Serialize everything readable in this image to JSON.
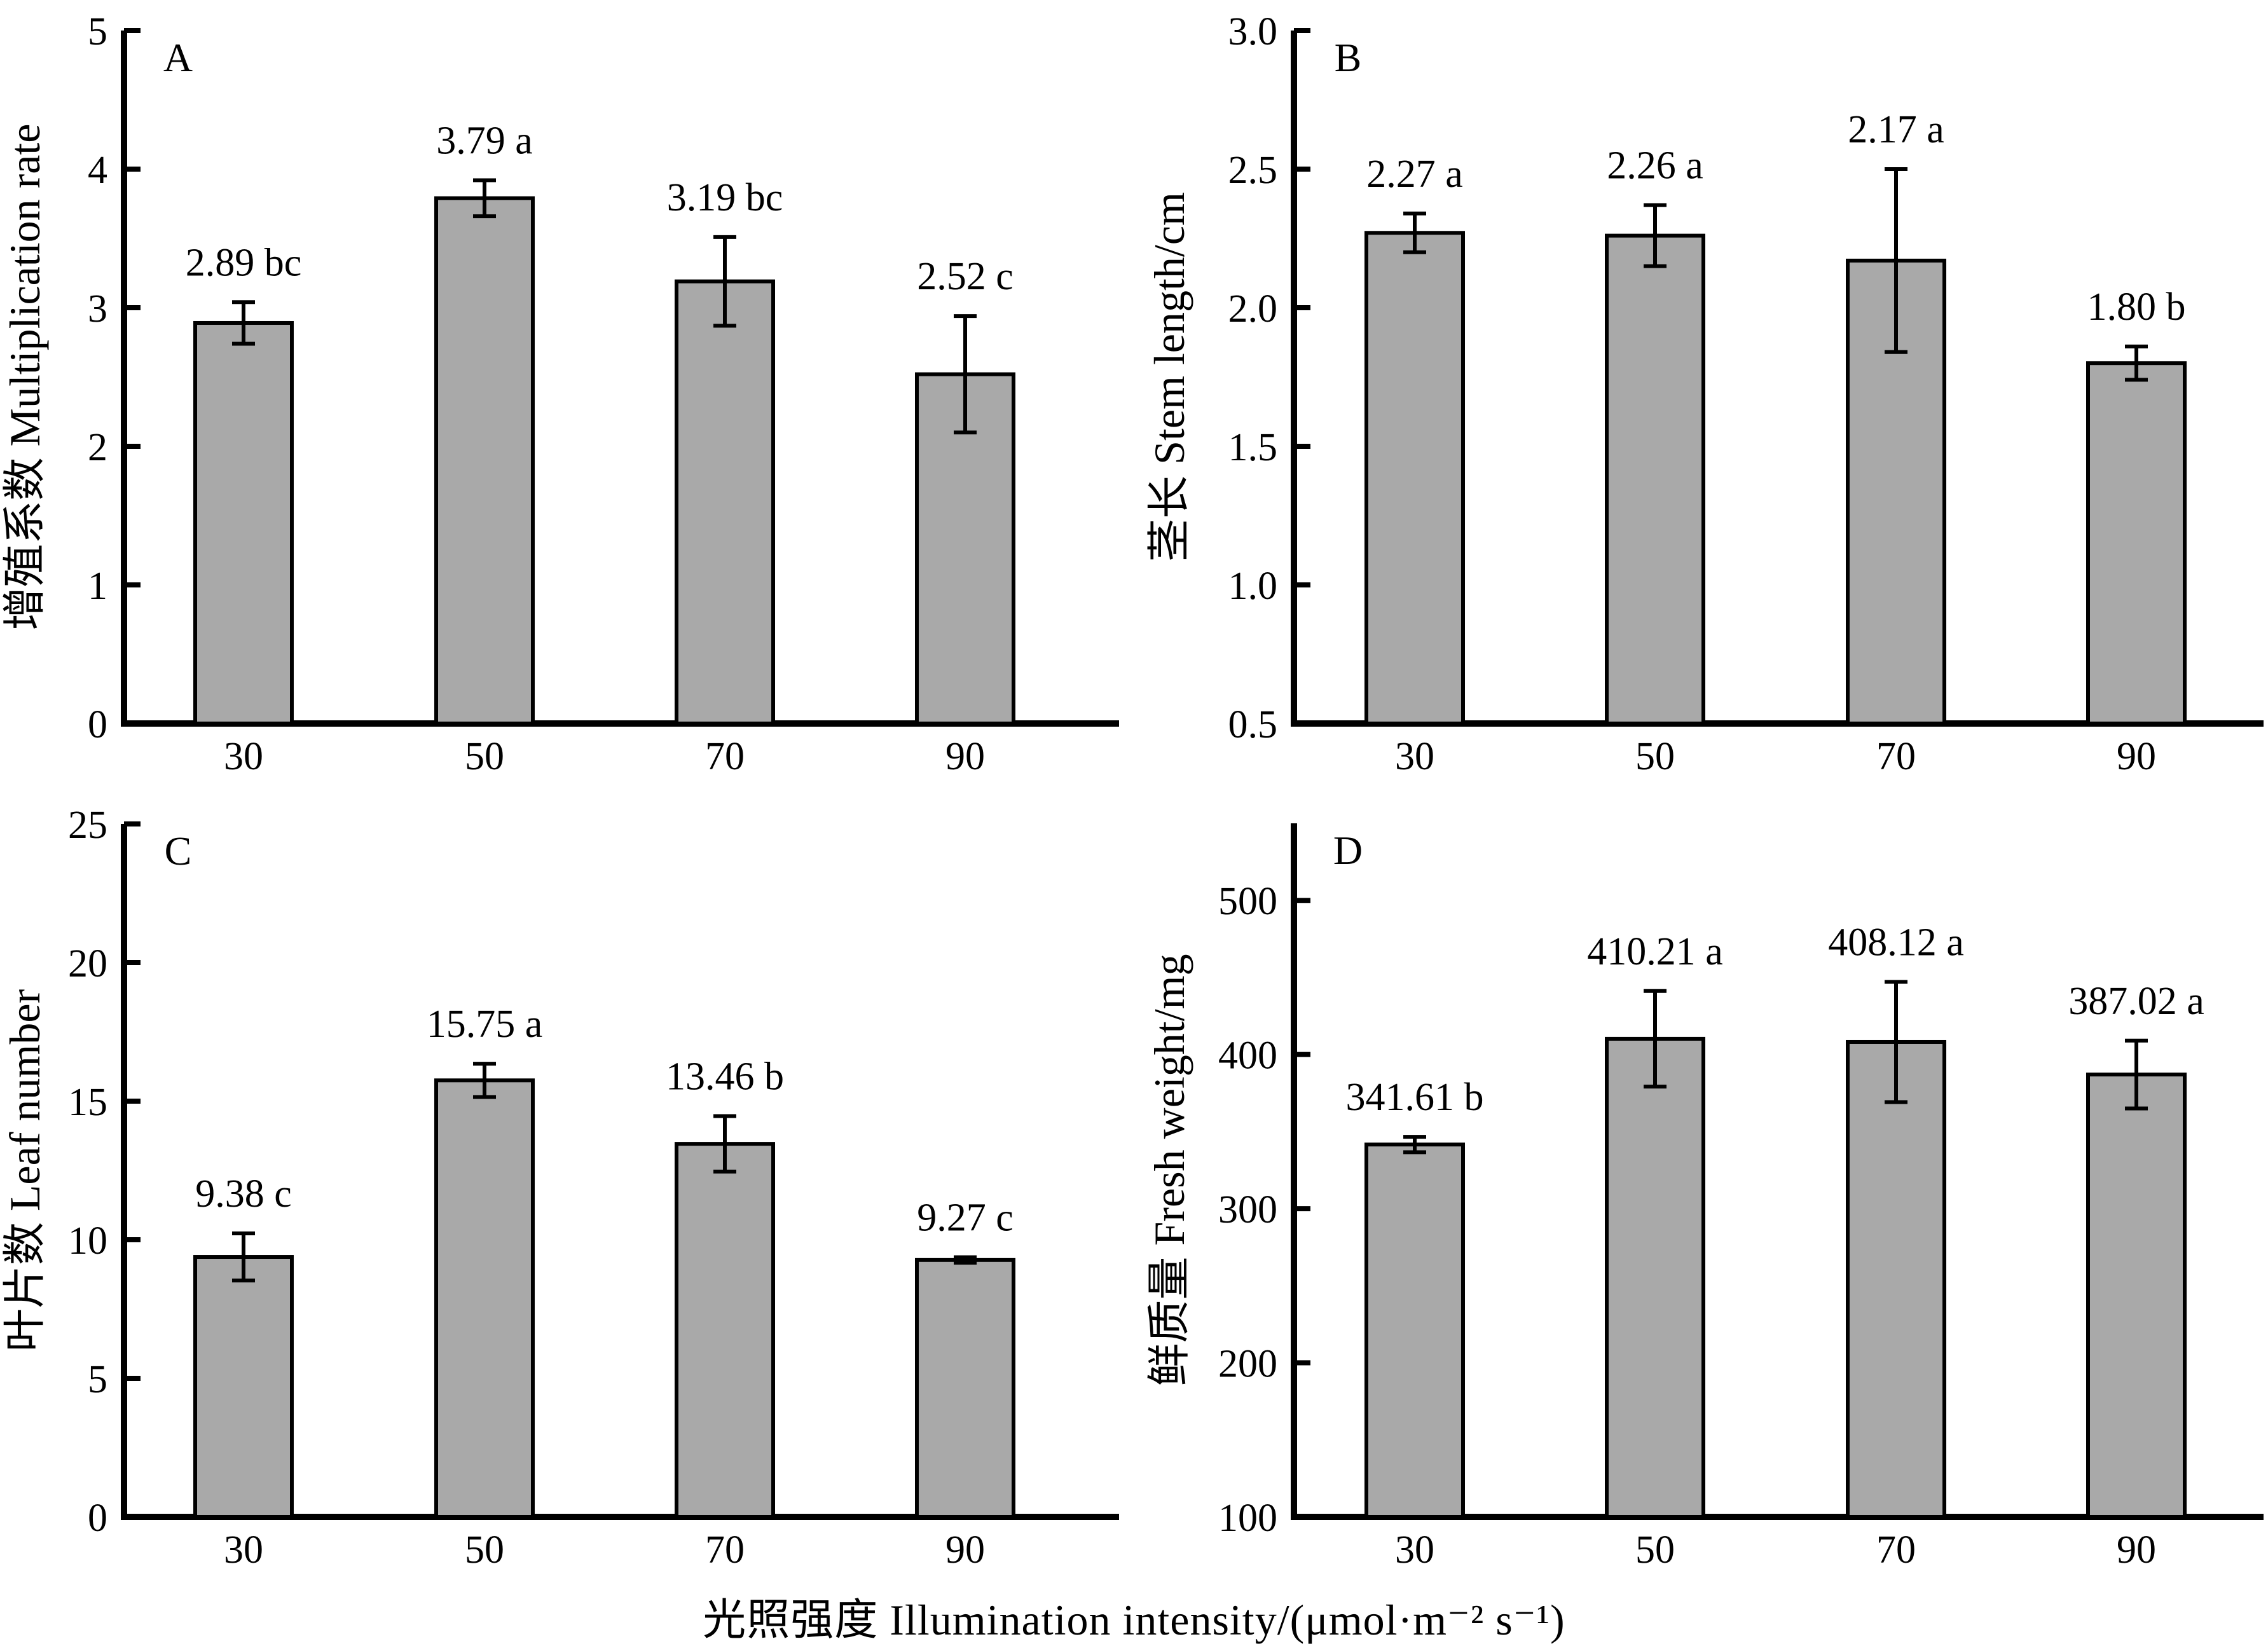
{
  "figure": {
    "xlabel": "光照强度  Illumination intensity/(μmol·m⁻² s⁻¹)",
    "background": "#ffffff",
    "bar_fill": "#a9a9a9",
    "axis_color": "#000000"
  },
  "chart_data": [
    {
      "panel": "A",
      "type": "bar",
      "ylabel": "增殖系数  Multiplication rate",
      "ylabel_zh": "增殖系数",
      "ylabel_en": "Multiplication rate",
      "categories": [
        "30",
        "50",
        "70",
        "90"
      ],
      "values": [
        2.89,
        3.79,
        3.19,
        2.52
      ],
      "errors": [
        0.15,
        0.13,
        0.32,
        0.42
      ],
      "value_labels": [
        "2.89 bc",
        "3.79 a",
        "3.19 bc",
        "2.52 c"
      ],
      "ylim": [
        0,
        5
      ],
      "yticks": [
        0,
        1,
        2,
        3,
        4,
        5
      ],
      "ytick_labels": [
        "0",
        "1",
        "2",
        "3",
        "4",
        "5"
      ],
      "grid": false,
      "legend": "none"
    },
    {
      "panel": "B",
      "type": "bar",
      "ylabel": "茎长  Stem length/cm",
      "ylabel_zh": "茎长",
      "ylabel_en": "Stem length/cm",
      "categories": [
        "30",
        "50",
        "70",
        "90"
      ],
      "values": [
        2.27,
        2.26,
        2.17,
        1.8
      ],
      "errors": [
        0.07,
        0.11,
        0.33,
        0.06
      ],
      "value_labels": [
        "2.27 a",
        "2.26 a",
        "2.17 a",
        "1.80 b"
      ],
      "ylim": [
        0.5,
        3.0
      ],
      "yticks": [
        0.5,
        1.0,
        1.5,
        2.0,
        2.5,
        3.0
      ],
      "ytick_labels": [
        "0.5",
        "1.0",
        "1.5",
        "2.0",
        "2.5",
        "3.0"
      ],
      "grid": false,
      "legend": "none"
    },
    {
      "panel": "C",
      "type": "bar",
      "ylabel": "叶片数  Leaf number",
      "ylabel_zh": "叶片数",
      "ylabel_en": "Leaf number",
      "categories": [
        "30",
        "50",
        "70",
        "90"
      ],
      "values": [
        9.38,
        15.75,
        13.46,
        9.27
      ],
      "errors": [
        0.85,
        0.6,
        1.0,
        0.1
      ],
      "value_labels": [
        "9.38 c",
        "15.75 a",
        "13.46 b",
        "9.27 c"
      ],
      "ylim": [
        0,
        25
      ],
      "yticks": [
        0,
        5,
        10,
        15,
        20,
        25
      ],
      "ytick_labels": [
        "0",
        "5",
        "10",
        "15",
        "20",
        "25"
      ],
      "grid": false,
      "legend": "none"
    },
    {
      "panel": "D",
      "type": "bar",
      "ylabel": "鲜质量  Fresh weight/mg",
      "ylabel_zh": "鲜质量",
      "ylabel_en": "Fresh weight/mg",
      "categories": [
        "30",
        "50",
        "70",
        "90"
      ],
      "values": [
        341.61,
        410.21,
        408.12,
        387.02
      ],
      "errors": [
        5,
        31,
        39,
        22
      ],
      "value_labels": [
        "341.61 b",
        "410.21 a",
        "408.12 a",
        "387.02 a"
      ],
      "ylim": [
        100,
        550
      ],
      "yticks": [
        100,
        200,
        300,
        400,
        500
      ],
      "ytick_labels": [
        "100",
        "200",
        "300",
        "400",
        "500"
      ],
      "grid": false,
      "legend": "none"
    }
  ]
}
